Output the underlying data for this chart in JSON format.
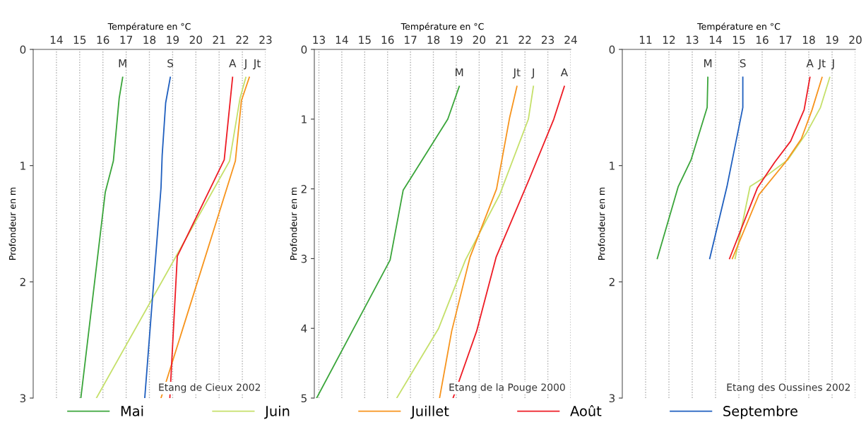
{
  "chart_data": [
    {
      "type": "line",
      "xlabel": "Température en °C",
      "ylabel": "Profondeur en m",
      "xlim": [
        13,
        23
      ],
      "xticks": [
        14,
        15,
        16,
        17,
        18,
        19,
        20,
        21,
        22,
        23
      ],
      "ylim": [
        3,
        0
      ],
      "yticks": [
        0,
        1,
        2,
        3
      ],
      "grid": "x",
      "legend": "bottom",
      "annotations": [
        "Etang de Cieux 2002",
        {
          "text": "M",
          "x": 16.85,
          "y": 0.24
        },
        {
          "text": "S",
          "x": 18.9,
          "y": 0.24
        },
        {
          "text": "A",
          "x": 21.58,
          "y": 0.24
        },
        {
          "text": "J",
          "x": 22.15,
          "y": 0.24
        },
        {
          "text": "Jt",
          "x": 22.3,
          "y": 0.24
        }
      ],
      "series": [
        {
          "name": "Mai",
          "color": "#3aa53a",
          "x": [
            16.85,
            16.7,
            16.45,
            16.1,
            15.05
          ],
          "values": [
            0.24,
            0.42,
            0.96,
            1.23,
            3.0
          ]
        },
        {
          "name": "Juin",
          "color": "#c5e06a",
          "x": [
            22.15,
            21.9,
            21.45,
            15.72
          ],
          "values": [
            0.24,
            0.42,
            0.96,
            3.0
          ]
        },
        {
          "name": "Juillet",
          "color": "#f7941d",
          "x": [
            22.3,
            21.96,
            21.7,
            18.5
          ],
          "values": [
            0.24,
            0.44,
            0.96,
            3.0
          ]
        },
        {
          "name": "Août",
          "color": "#ee1c25",
          "x": [
            21.58,
            21.22,
            19.2,
            18.88
          ],
          "values": [
            0.24,
            0.95,
            1.78,
            3.0
          ]
        },
        {
          "name": "Septembre",
          "color": "#1f5fbf",
          "x": [
            18.9,
            18.7,
            18.55,
            18.5,
            17.8
          ],
          "values": [
            0.24,
            0.46,
            0.91,
            1.19,
            3.0
          ]
        }
      ]
    },
    {
      "type": "line",
      "xlabel": "Température en °C",
      "ylabel": "Profondeur en m",
      "xlim": [
        12.8,
        24
      ],
      "xticks": [
        13,
        14,
        15,
        16,
        17,
        18,
        19,
        20,
        21,
        22,
        23,
        24
      ],
      "ylim": [
        5,
        0
      ],
      "yticks": [
        0,
        1,
        2,
        3,
        4,
        5
      ],
      "grid": "x",
      "annotations": [
        "Etang de la Pouge 2000",
        {
          "text": "M",
          "x": 19.13,
          "y": 0.53
        },
        {
          "text": "Jt",
          "x": 21.65,
          "y": 0.53
        },
        {
          "text": "J",
          "x": 22.37,
          "y": 0.53
        },
        {
          "text": "A",
          "x": 23.72,
          "y": 0.53
        }
      ],
      "series": [
        {
          "name": "Mai",
          "color": "#3aa53a",
          "x": [
            19.13,
            18.63,
            16.68,
            16.11,
            12.9
          ],
          "values": [
            0.53,
            1.0,
            2.02,
            3.02,
            5.0
          ]
        },
        {
          "name": "Juin",
          "color": "#c5e06a",
          "x": [
            22.37,
            22.15,
            20.9,
            19.4,
            18.23,
            16.4
          ],
          "values": [
            0.53,
            1.0,
            2.08,
            3.02,
            4.0,
            5.0
          ]
        },
        {
          "name": "Juillet",
          "color": "#f7941d",
          "x": [
            21.65,
            21.33,
            20.76,
            19.6,
            18.8,
            18.27
          ],
          "values": [
            0.53,
            0.98,
            2.0,
            2.98,
            4.04,
            5.0
          ]
        },
        {
          "name": "Août",
          "color": "#ee1c25",
          "x": [
            23.72,
            23.26,
            22.2,
            20.74,
            19.89,
            18.86
          ],
          "values": [
            0.53,
            1.0,
            1.85,
            2.98,
            4.04,
            5.0
          ]
        }
      ]
    },
    {
      "type": "line",
      "xlabel": "Température en °C",
      "ylabel": "Profondeur en m",
      "xlim": [
        10,
        20
      ],
      "xticks": [
        11,
        12,
        13,
        14,
        15,
        16,
        17,
        18,
        19,
        20
      ],
      "ylim": [
        3,
        0
      ],
      "yticks": [
        0,
        1,
        2,
        3
      ],
      "grid": "x",
      "annotations": [
        "Etang des Oussines 2002",
        {
          "text": "M",
          "x": 13.67,
          "y": 0.24
        },
        {
          "text": "S",
          "x": 15.17,
          "y": 0.24
        },
        {
          "text": "A",
          "x": 18.05,
          "y": 0.24
        },
        {
          "text": "Jt",
          "x": 18.57,
          "y": 0.24
        },
        {
          "text": "J",
          "x": 19.0,
          "y": 0.24
        }
      ],
      "series": [
        {
          "name": "Mai",
          "color": "#3aa53a",
          "x": [
            13.67,
            13.64,
            12.95,
            12.4,
            11.5
          ],
          "values": [
            0.24,
            0.5,
            0.95,
            1.18,
            1.8
          ]
        },
        {
          "name": "Juin",
          "color": "#c5e06a",
          "x": [
            18.9,
            18.5,
            17.9,
            17.1,
            16.1,
            15.48,
            14.84
          ],
          "values": [
            0.24,
            0.5,
            0.72,
            0.95,
            1.1,
            1.18,
            1.8
          ]
        },
        {
          "name": "Juillet",
          "color": "#f7941d",
          "x": [
            18.57,
            18.14,
            17.68,
            17.0,
            15.86,
            14.72
          ],
          "values": [
            0.24,
            0.52,
            0.77,
            0.97,
            1.25,
            1.8
          ]
        },
        {
          "name": "Août",
          "color": "#ee1c25",
          "x": [
            18.05,
            17.8,
            17.22,
            16.54,
            15.8,
            14.6
          ],
          "values": [
            0.24,
            0.52,
            0.79,
            0.97,
            1.19,
            1.8
          ]
        },
        {
          "name": "Septembre",
          "color": "#1f5fbf",
          "x": [
            15.17,
            15.17,
            14.49,
            13.75
          ],
          "values": [
            0.24,
            0.5,
            1.18,
            1.8
          ]
        }
      ]
    }
  ]
}
